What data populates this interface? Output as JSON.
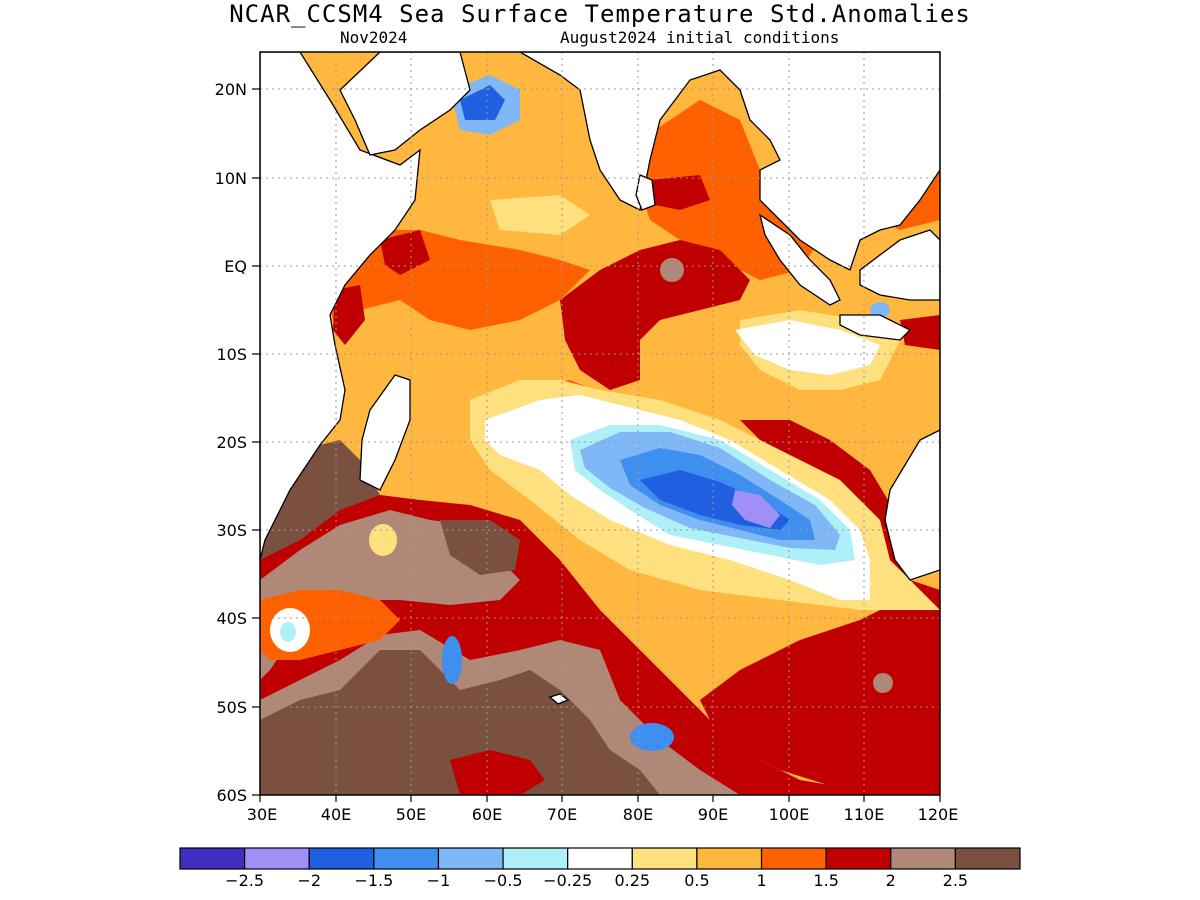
{
  "title": "NCAR_CCSM4 Sea Surface Temperature Std.Anomalies",
  "subtitle_left": "Nov2024",
  "subtitle_right": "August2024 initial conditions",
  "lat_labels": [
    "20N",
    "10N",
    "EQ",
    "10S",
    "20S",
    "30S",
    "40S",
    "50S",
    "60S"
  ],
  "lon_labels": [
    "30E",
    "40E",
    "50E",
    "60E",
    "70E",
    "80E",
    "90E",
    "100E",
    "110E",
    "120E"
  ],
  "colorbar": {
    "colors": [
      "#3f2fbf",
      "#9f8ff7",
      "#1f5fe0",
      "#3f8ff0",
      "#7fb7f7",
      "#afeff7",
      "#ffffff",
      "#ffe07f",
      "#ffb73f",
      "#ff6000",
      "#c00000",
      "#b08878",
      "#7a5040"
    ],
    "labels": [
      "-2.5",
      "-2",
      "-1.5",
      "-1",
      "-0.5",
      "-0.25",
      "0.25",
      "0.5",
      "1",
      "1.5",
      "2",
      "2.5"
    ]
  },
  "colors": {
    "land": "#ffffff",
    "coast": "#000000",
    "grid": "#9a9a9a"
  }
}
